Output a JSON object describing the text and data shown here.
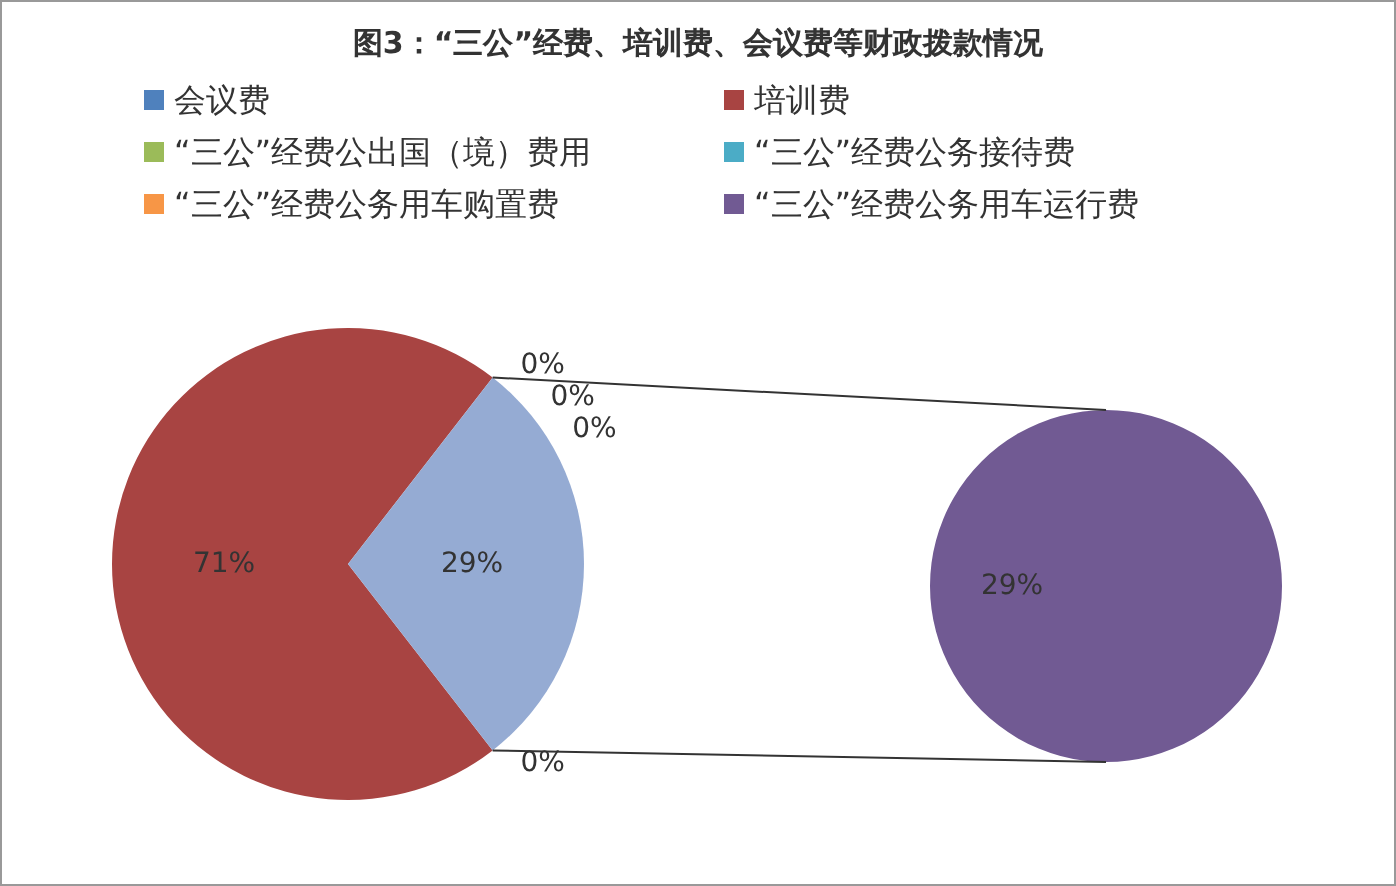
{
  "chart_data": [
    {
      "type": "pie",
      "title": "图3：“三公”经费、培训费、会议费等财政拨款情况",
      "categories": [
        "会议费",
        "培训费",
        "“三公”经费公出国（境）费用",
        "“三公”经费公务接待费",
        "“三公”经费公务用车购置费",
        null
      ],
      "values": [
        0,
        71,
        0,
        0,
        0,
        29
      ],
      "colors": [
        "#4f81bd",
        "#a84442",
        "#9bbb59",
        "#4bacc6",
        "#f79646",
        "#95abd3"
      ],
      "value_labels": [
        "0%",
        "71%",
        "0%",
        "0%",
        "0%",
        "29%"
      ],
      "legend": "top"
    },
    {
      "type": "pie",
      "categories": [
        "“三公”经费公务用车运行费"
      ],
      "values": [
        29
      ],
      "colors": [
        "#715a93"
      ],
      "value_labels": [
        "29%"
      ],
      "legend": "top"
    }
  ]
}
